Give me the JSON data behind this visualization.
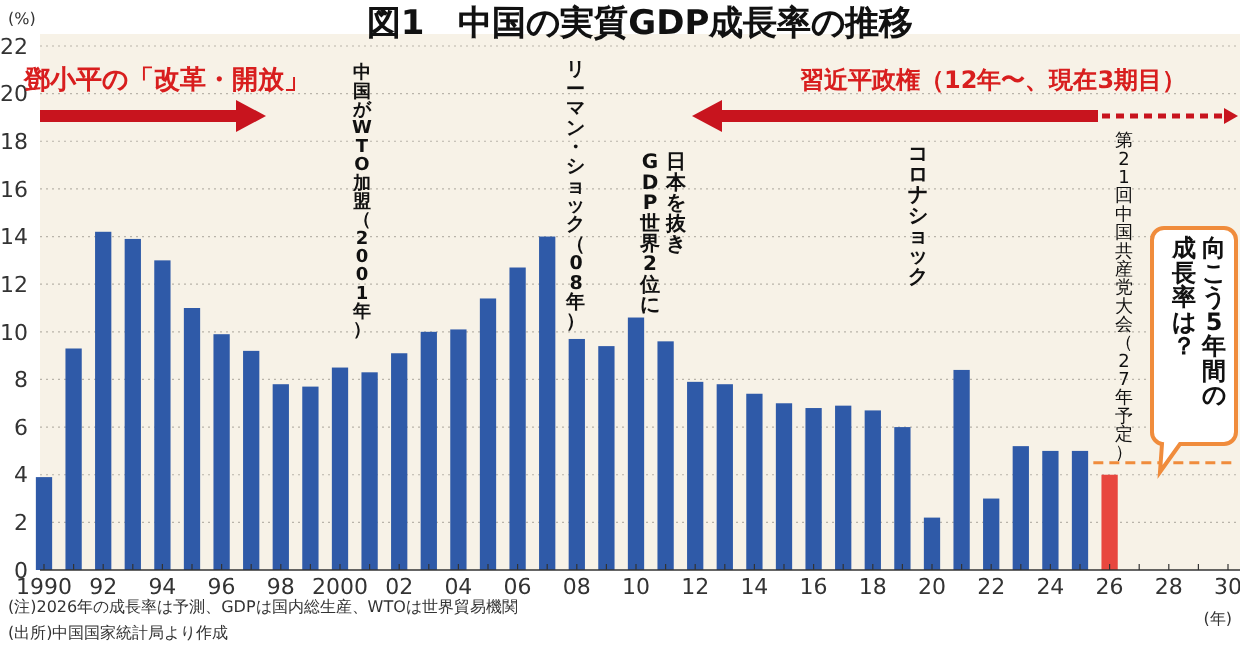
{
  "chart_data": {
    "type": "bar",
    "title": "図1　中国の実質GDP成長率の推移",
    "ylabel": "(%)",
    "xlabel": "(年)",
    "categories": [
      "1990",
      null,
      "92",
      null,
      "94",
      null,
      "96",
      null,
      "98",
      null,
      "2000",
      null,
      "02",
      null,
      "04",
      null,
      "06",
      null,
      "08",
      null,
      "10",
      null,
      "12",
      null,
      "14",
      null,
      "16",
      null,
      "18",
      null,
      "20",
      null,
      "22",
      null,
      "24",
      null,
      "26",
      null,
      "28",
      null,
      "30"
    ],
    "values": [
      3.9,
      9.3,
      14.2,
      13.9,
      13.0,
      11.0,
      9.9,
      9.2,
      7.8,
      7.7,
      8.5,
      8.3,
      9.1,
      10.0,
      10.1,
      11.4,
      12.7,
      14.0,
      9.7,
      9.4,
      10.6,
      9.6,
      7.9,
      7.8,
      7.4,
      7.0,
      6.8,
      6.9,
      6.7,
      6.0,
      2.2,
      8.4,
      3.0,
      5.2,
      5.0,
      5.0,
      4.0,
      null,
      null,
      null,
      null
    ],
    "colors": [
      "#2f5aa8",
      "#2f5aa8",
      "#2f5aa8",
      "#2f5aa8",
      "#2f5aa8",
      "#2f5aa8",
      "#2f5aa8",
      "#2f5aa8",
      "#2f5aa8",
      "#2f5aa8",
      "#2f5aa8",
      "#2f5aa8",
      "#2f5aa8",
      "#2f5aa8",
      "#2f5aa8",
      "#2f5aa8",
      "#2f5aa8",
      "#2f5aa8",
      "#2f5aa8",
      "#2f5aa8",
      "#2f5aa8",
      "#2f5aa8",
      "#2f5aa8",
      "#2f5aa8",
      "#2f5aa8",
      "#2f5aa8",
      "#2f5aa8",
      "#2f5aa8",
      "#2f5aa8",
      "#2f5aa8",
      "#2f5aa8",
      "#2f5aa8",
      "#2f5aa8",
      "#2f5aa8",
      "#2f5aa8",
      "#2f5aa8",
      "#e8473f",
      null,
      null,
      null,
      null
    ],
    "ylim": [
      0,
      22
    ],
    "yticks": [
      0,
      2,
      4,
      6,
      8,
      10,
      12,
      14,
      16,
      18,
      20,
      22
    ],
    "grid": "y",
    "ref_lines": [
      {
        "axis": "y",
        "value": 4.5,
        "color": "#f08c3c",
        "line_style": "dashed"
      }
    ],
    "annotations": [
      "鄧小平の「改革・開放」",
      "習近平政権（12年〜、現在3期目）",
      "中国がWTO加盟（2001年）",
      "リーマン・ショック（08年）",
      "日本を抜き",
      "GDP世界2位に",
      "コロナショック",
      "第21回中国共産党大会（27年予定）",
      "向こう5年間の",
      "成長率は？",
      "(注)2026年の成長率は予測、GDPは国内総生産、WTOは世界貿易機関",
      "(出所)中国国家統計局より作成"
    ]
  }
}
